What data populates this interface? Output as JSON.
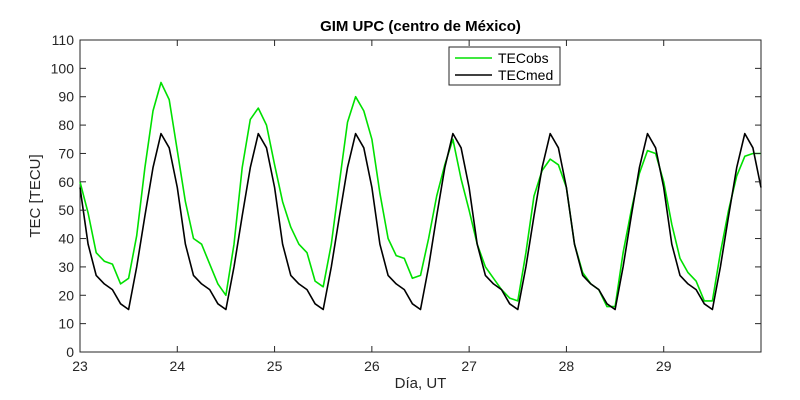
{
  "chart_data": {
    "type": "line",
    "title": "GIM UPC (centro de México)",
    "xlabel": "Día, UT",
    "ylabel": "TEC [TECU]",
    "xlim": [
      23,
      30
    ],
    "ylim": [
      0,
      110
    ],
    "x_ticks": [
      23,
      24,
      25,
      26,
      27,
      28,
      29
    ],
    "y_ticks": [
      0,
      10,
      20,
      30,
      40,
      50,
      60,
      70,
      80,
      90,
      100,
      110
    ],
    "grid": false,
    "legend_position": "top-right",
    "x": [
      23.0,
      23.083,
      23.167,
      23.25,
      23.333,
      23.417,
      23.5,
      23.583,
      23.667,
      23.75,
      23.833,
      23.917,
      24.0,
      24.083,
      24.167,
      24.25,
      24.333,
      24.417,
      24.5,
      24.583,
      24.667,
      24.75,
      24.833,
      24.917,
      25.0,
      25.083,
      25.167,
      25.25,
      25.333,
      25.417,
      25.5,
      25.583,
      25.667,
      25.75,
      25.833,
      25.917,
      26.0,
      26.083,
      26.167,
      26.25,
      26.333,
      26.417,
      26.5,
      26.583,
      26.667,
      26.75,
      26.833,
      26.917,
      27.0,
      27.083,
      27.167,
      27.25,
      27.333,
      27.417,
      27.5,
      27.583,
      27.667,
      27.75,
      27.833,
      27.917,
      28.0,
      28.083,
      28.167,
      28.25,
      28.333,
      28.417,
      28.5,
      28.583,
      28.667,
      28.75,
      28.833,
      28.917,
      29.0,
      29.083,
      29.167,
      29.25,
      29.333,
      29.417,
      29.5,
      29.583,
      29.667,
      29.75,
      29.833,
      29.917,
      30.0
    ],
    "series": [
      {
        "name": "TECobs",
        "color": "#00e000",
        "values": [
          60,
          49,
          35,
          32,
          31,
          24,
          26,
          41,
          65,
          85,
          95,
          89,
          71,
          53,
          40,
          38,
          31,
          24,
          20,
          38,
          65,
          82,
          86,
          80,
          66,
          53,
          44,
          38,
          35,
          25,
          23,
          38,
          60,
          81,
          90,
          85,
          75,
          56,
          40,
          34,
          33,
          26,
          27,
          40,
          55,
          66,
          75,
          61,
          50,
          38,
          30,
          26,
          22,
          19,
          18,
          35,
          55,
          64,
          68,
          66,
          58,
          38,
          28,
          24,
          22,
          16,
          16,
          35,
          50,
          63,
          71,
          70,
          60,
          45,
          33,
          28,
          25,
          18,
          18,
          35,
          50,
          62,
          69,
          70,
          70
        ]
      },
      {
        "name": "TECmed",
        "color": "#000000",
        "values": [
          58,
          38,
          27,
          24,
          22,
          17,
          15,
          30,
          48,
          65,
          77,
          72,
          58,
          38,
          27,
          24,
          22,
          17,
          15,
          30,
          48,
          65,
          77,
          72,
          58,
          38,
          27,
          24,
          22,
          17,
          15,
          30,
          48,
          65,
          77,
          72,
          58,
          38,
          27,
          24,
          22,
          17,
          15,
          30,
          48,
          65,
          77,
          72,
          58,
          38,
          27,
          24,
          22,
          17,
          15,
          30,
          48,
          65,
          77,
          72,
          58,
          38,
          27,
          24,
          22,
          17,
          15,
          30,
          48,
          65,
          77,
          72,
          58,
          38,
          27,
          24,
          22,
          17,
          15,
          30,
          48,
          65,
          77,
          72,
          58
        ]
      }
    ]
  }
}
